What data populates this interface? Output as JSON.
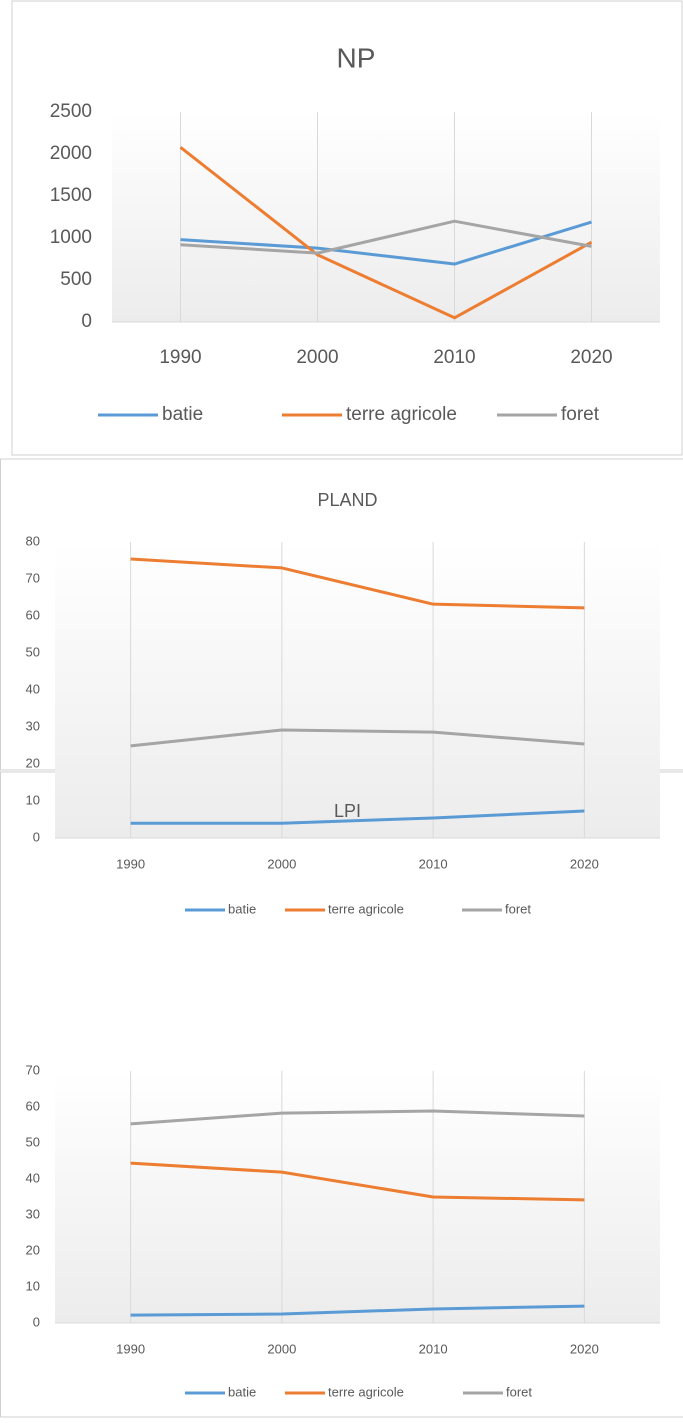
{
  "chart_data": [
    {
      "type": "line",
      "title": "NP",
      "categories": [
        "1990",
        "2000",
        "2010",
        "2020"
      ],
      "series": [
        {
          "name": "batie",
          "color": "#5b9bd5",
          "values": [
            980,
            880,
            690,
            1190
          ]
        },
        {
          "name": "terre agricole",
          "color": "#ed7d31",
          "values": [
            2080,
            800,
            50,
            950
          ]
        },
        {
          "name": "foret",
          "color": "#a5a5a5",
          "values": [
            920,
            820,
            1200,
            900
          ]
        }
      ],
      "ylim": [
        0,
        2500
      ],
      "yticks": [
        0,
        500,
        1000,
        1500,
        2000,
        2500
      ],
      "grid": true,
      "legend": "bottom"
    },
    {
      "type": "line",
      "title": "PLAND",
      "categories": [
        "1990",
        "2000",
        "2010",
        "2020"
      ],
      "series": [
        {
          "name": "batie",
          "color": "#5b9bd5",
          "values": [
            4.0,
            4.0,
            5.4,
            7.3
          ]
        },
        {
          "name": "terre agricole",
          "color": "#ed7d31",
          "values": [
            75.4,
            73.0,
            63.2,
            62.2
          ]
        },
        {
          "name": "foret",
          "color": "#a5a5a5",
          "values": [
            24.9,
            29.2,
            28.6,
            25.4
          ]
        }
      ],
      "ylim": [
        0,
        80
      ],
      "yticks": [
        0,
        10,
        20,
        30,
        40,
        50,
        60,
        70,
        80
      ],
      "grid": true,
      "legend": "bottom"
    },
    {
      "type": "line",
      "title": "LPI",
      "categories": [
        "1990",
        "2000",
        "2010",
        "2020"
      ],
      "series": [
        {
          "name": "batie",
          "color": "#5b9bd5",
          "values": [
            2.2,
            2.5,
            3.9,
            4.7
          ]
        },
        {
          "name": "terre agricole",
          "color": "#ed7d31",
          "values": [
            44.4,
            41.9,
            35.0,
            34.2
          ]
        },
        {
          "name": "foret",
          "color": "#a5a5a5",
          "values": [
            55.3,
            58.3,
            58.9,
            57.5
          ]
        }
      ],
      "ylim": [
        0,
        70
      ],
      "yticks": [
        0,
        10,
        20,
        30,
        40,
        50,
        60,
        70
      ],
      "grid": true,
      "legend": "bottom"
    }
  ]
}
